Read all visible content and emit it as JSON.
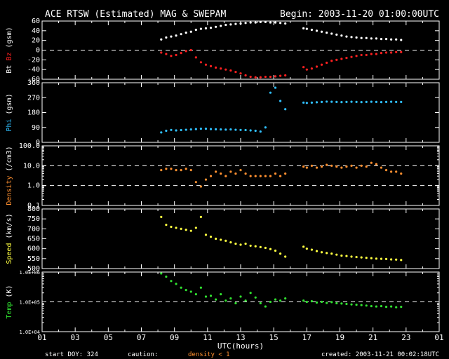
{
  "header": {
    "title": "ACE RTSW (Estimated) MAG & SWEPAM",
    "begin": "Begin: 2003-11-20 01:00:00UTC"
  },
  "footer": {
    "start_doy": "start DOY: 324",
    "caution": "caution:",
    "caution_note": "density < 1",
    "created": "created: 2003-11-21  00:02:18UTC"
  },
  "colors": {
    "background": "#000000",
    "axes": "#ffffff",
    "bt": "#ffffff",
    "bz": "#ff2020",
    "phi": "#30c0ff",
    "density": "#ff9030",
    "speed": "#ffff40",
    "temp": "#30e030",
    "caution": "#ff9030"
  },
  "chart_data": [
    {
      "type": "scatter",
      "panel": "mag",
      "ylabel": "Bt  Bz  (gsm)",
      "ylim": [
        -60,
        60
      ],
      "yticks": [
        "60",
        "40",
        "20",
        "0",
        "-20",
        "-40",
        "-60"
      ],
      "zero_line": 0,
      "x_unit": "UTC hours",
      "series": [
        {
          "name": "Bt",
          "x": [
            8.2,
            8.5,
            8.8,
            9.1,
            9.4,
            9.7,
            10.0,
            10.3,
            10.6,
            10.9,
            11.2,
            11.5,
            11.8,
            12.1,
            12.4,
            12.7,
            13.0,
            13.3,
            13.6,
            13.9,
            14.2,
            14.5,
            14.8,
            15.1,
            15.4,
            15.7,
            16.8,
            17.0,
            17.3,
            17.6,
            17.9,
            18.2,
            18.5,
            18.8,
            19.1,
            19.4,
            19.7,
            20.0,
            20.3,
            20.6,
            20.9,
            21.2,
            21.5,
            21.8,
            22.1,
            22.4,
            22.7
          ],
          "values": [
            22,
            26,
            28,
            30,
            33,
            36,
            38,
            42,
            44,
            45,
            46,
            48,
            50,
            52,
            53,
            54,
            55,
            56,
            57,
            57,
            58,
            58,
            57,
            57,
            56,
            55,
            45,
            44,
            42,
            40,
            38,
            36,
            34,
            32,
            30,
            28,
            27,
            26,
            25,
            25,
            24,
            24,
            23,
            23,
            22,
            22,
            21
          ]
        },
        {
          "name": "Bz",
          "x": [
            8.2,
            8.5,
            8.8,
            9.1,
            9.4,
            9.7,
            10.0,
            10.3,
            10.6,
            10.9,
            11.2,
            11.5,
            11.8,
            12.1,
            12.4,
            12.7,
            13.0,
            13.3,
            13.6,
            13.9,
            14.2,
            14.5,
            14.8,
            15.1,
            15.4,
            15.7,
            16.8,
            17.0,
            17.3,
            17.6,
            17.9,
            18.2,
            18.5,
            18.8,
            19.1,
            19.4,
            19.7,
            20.0,
            20.3,
            20.6,
            20.9,
            21.2,
            21.5,
            21.8,
            22.1,
            22.4,
            22.7
          ],
          "values": [
            -5,
            -8,
            -12,
            -10,
            -6,
            -2,
            0,
            -15,
            -25,
            -30,
            -33,
            -36,
            -38,
            -40,
            -42,
            -45,
            -48,
            -52,
            -55,
            -56,
            -56,
            -55,
            -55,
            -54,
            -53,
            -52,
            -35,
            -40,
            -38,
            -34,
            -30,
            -26,
            -22,
            -20,
            -18,
            -16,
            -14,
            -12,
            -10,
            -10,
            -8,
            -8,
            -6,
            -5,
            -5,
            -4,
            -4
          ]
        }
      ]
    },
    {
      "type": "scatter",
      "panel": "phi",
      "ylabel": "Phi (gsm)",
      "ylim": [
        0,
        360
      ],
      "yticks": [
        "360",
        "270",
        "180",
        "90",
        "0"
      ],
      "series": [
        {
          "name": "Phi",
          "x": [
            8.2,
            8.5,
            8.8,
            9.1,
            9.4,
            9.7,
            10.0,
            10.3,
            10.6,
            10.9,
            11.2,
            11.5,
            11.8,
            12.1,
            12.4,
            12.7,
            13.0,
            13.3,
            13.6,
            13.9,
            14.2,
            14.5,
            14.8,
            15.1,
            15.4,
            15.7,
            16.8,
            17.0,
            17.3,
            17.6,
            17.9,
            18.2,
            18.5,
            18.8,
            19.1,
            19.4,
            19.7,
            20.0,
            20.3,
            20.6,
            20.9,
            21.2,
            21.5,
            21.8,
            22.1,
            22.4,
            22.7
          ],
          "values": [
            60,
            70,
            75,
            72,
            74,
            76,
            78,
            80,
            82,
            82,
            80,
            79,
            78,
            77,
            78,
            76,
            75,
            74,
            72,
            70,
            65,
            90,
            300,
            330,
            250,
            200,
            240,
            238,
            240,
            242,
            244,
            246,
            245,
            244,
            243,
            244,
            245,
            244,
            243,
            244,
            245,
            244,
            243,
            244,
            245,
            244,
            244
          ]
        }
      ]
    },
    {
      "type": "scatter",
      "panel": "density",
      "ylabel": "Density (/cm3)",
      "log_scale": true,
      "ylim": [
        0.1,
        100.0
      ],
      "yticks": [
        "100.0",
        "10.0",
        "1.0",
        "0.1"
      ],
      "ref_lines": [
        10.0,
        1.0
      ],
      "series": [
        {
          "name": "Density",
          "x": [
            8.2,
            8.5,
            8.8,
            9.1,
            9.4,
            9.7,
            10.0,
            10.3,
            10.6,
            10.9,
            11.2,
            11.5,
            11.8,
            12.1,
            12.4,
            12.7,
            13.0,
            13.3,
            13.6,
            13.9,
            14.2,
            14.5,
            14.8,
            15.1,
            15.4,
            15.7,
            16.8,
            17.0,
            17.3,
            17.6,
            17.9,
            18.2,
            18.5,
            18.8,
            19.1,
            19.4,
            19.7,
            20.0,
            20.3,
            20.6,
            20.9,
            21.2,
            21.5,
            21.8,
            22.1,
            22.4,
            22.7
          ],
          "values": [
            6,
            7,
            7,
            6,
            6,
            7,
            6,
            1.5,
            0.9,
            2,
            3,
            5,
            4,
            3,
            5,
            4,
            6,
            4,
            3,
            3,
            3,
            3,
            3,
            4,
            3,
            4,
            9,
            8,
            10,
            8,
            9,
            11,
            10,
            9,
            8,
            9,
            10,
            8,
            10,
            9,
            14,
            12,
            8,
            6,
            5,
            5,
            4
          ]
        }
      ]
    },
    {
      "type": "scatter",
      "panel": "speed",
      "ylabel": "Speed (km/s)",
      "ylim": [
        500,
        800
      ],
      "yticks": [
        "800",
        "750",
        "700",
        "650",
        "600",
        "550",
        "500"
      ],
      "series": [
        {
          "name": "Speed",
          "x": [
            8.2,
            8.5,
            8.8,
            9.1,
            9.4,
            9.7,
            10.0,
            10.3,
            10.6,
            10.9,
            11.2,
            11.5,
            11.8,
            12.1,
            12.4,
            12.7,
            13.0,
            13.3,
            13.6,
            13.9,
            14.2,
            14.5,
            14.8,
            15.1,
            15.4,
            15.7,
            16.8,
            17.0,
            17.3,
            17.6,
            17.9,
            18.2,
            18.5,
            18.8,
            19.1,
            19.4,
            19.7,
            20.0,
            20.3,
            20.6,
            20.9,
            21.2,
            21.5,
            21.8,
            22.1,
            22.4,
            22.7
          ],
          "values": [
            760,
            720,
            710,
            705,
            700,
            695,
            690,
            705,
            760,
            670,
            660,
            650,
            645,
            640,
            632,
            625,
            620,
            625,
            615,
            612,
            608,
            604,
            598,
            590,
            575,
            560,
            610,
            600,
            595,
            588,
            582,
            578,
            575,
            570,
            565,
            563,
            560,
            558,
            556,
            554,
            552,
            550,
            549,
            548,
            546,
            545,
            543
          ]
        }
      ]
    },
    {
      "type": "scatter",
      "panel": "temp",
      "ylabel": "Temp (K)",
      "log_scale": true,
      "ylim": [
        10000,
        1000000
      ],
      "yticks": [
        "1.0E+06",
        "1.0E+05",
        "1.0E+04"
      ],
      "ref_lines": [
        100000
      ],
      "series": [
        {
          "name": "Temp",
          "x": [
            8.2,
            8.5,
            8.8,
            9.1,
            9.4,
            9.7,
            10.0,
            10.3,
            10.6,
            10.9,
            11.2,
            11.5,
            11.8,
            12.1,
            12.4,
            12.7,
            13.0,
            13.3,
            13.6,
            13.9,
            14.2,
            14.5,
            14.8,
            15.1,
            15.4,
            15.7,
            16.8,
            17.0,
            17.3,
            17.6,
            17.9,
            18.2,
            18.5,
            18.8,
            19.1,
            19.4,
            19.7,
            20.0,
            20.3,
            20.6,
            20.9,
            21.2,
            21.5,
            21.8,
            22.1,
            22.4,
            22.7
          ],
          "values": [
            900000,
            700000,
            500000,
            400000,
            300000,
            250000,
            220000,
            180000,
            300000,
            150000,
            160000,
            120000,
            180000,
            110000,
            130000,
            90000,
            150000,
            110000,
            200000,
            140000,
            90000,
            70000,
            100000,
            120000,
            110000,
            130000,
            110000,
            100000,
            105000,
            95000,
            100000,
            92000,
            98000,
            90000,
            88000,
            85000,
            82000,
            80000,
            78000,
            75000,
            72000,
            70000,
            72000,
            68000,
            70000,
            66000,
            68000
          ]
        }
      ]
    }
  ],
  "x_axis": {
    "xlabel": "UTC(hours)",
    "ticks": [
      "01",
      "03",
      "05",
      "07",
      "09",
      "11",
      "13",
      "15",
      "17",
      "19",
      "21",
      "23",
      "01"
    ]
  }
}
